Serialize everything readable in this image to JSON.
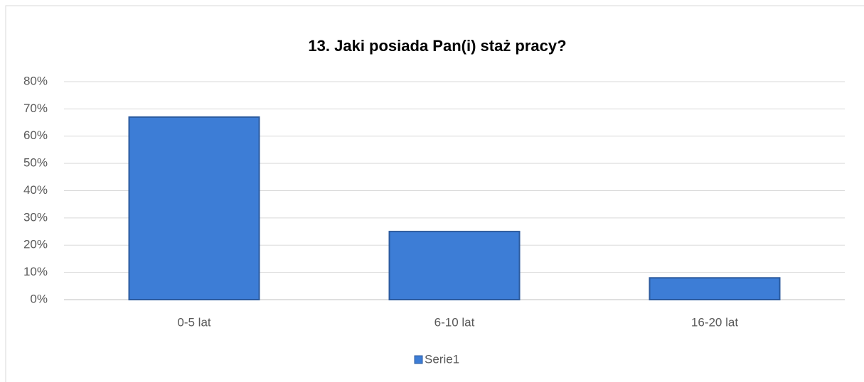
{
  "chart_data": {
    "type": "bar",
    "title": "13. Jaki posiada Pan(i) staż pracy?",
    "categories": [
      "0-5 lat",
      "6-10 lat",
      "16-20 lat"
    ],
    "series": [
      {
        "name": "Serie1",
        "color": "#3d7dd6",
        "values": [
          67,
          25,
          8
        ]
      }
    ],
    "ylim": [
      0,
      80
    ],
    "yticks": [
      {
        "value": 0,
        "label": "0%"
      },
      {
        "value": 10,
        "label": "10%"
      },
      {
        "value": 20,
        "label": "20%"
      },
      {
        "value": 30,
        "label": "30%"
      },
      {
        "value": 40,
        "label": "40%"
      },
      {
        "value": 50,
        "label": "50%"
      },
      {
        "value": 60,
        "label": "60%"
      },
      {
        "value": 70,
        "label": "70%"
      },
      {
        "value": 80,
        "label": "80%"
      }
    ],
    "grid": true,
    "legend": "bottom"
  }
}
